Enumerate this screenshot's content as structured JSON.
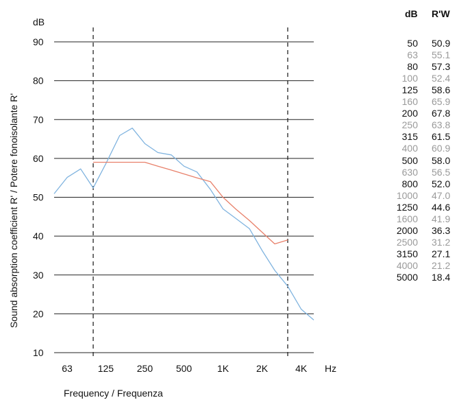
{
  "chart_data": {
    "type": "line",
    "ylabel": "Sound absorption coefficient R' / Potere fonoisolante R'",
    "xlabel": "Frequency / Frequenza",
    "y_unit": "dB",
    "x_unit": "Hz",
    "ylim": [
      10,
      90
    ],
    "y_ticks": [
      10,
      20,
      30,
      40,
      50,
      60,
      70,
      80,
      90
    ],
    "x_ticks": [
      {
        "label": "63",
        "freq": 63
      },
      {
        "label": "125",
        "freq": 125
      },
      {
        "label": "250",
        "freq": 250
      },
      {
        "label": "500",
        "freq": 500
      },
      {
        "label": "1K",
        "freq": 1000
      },
      {
        "label": "2K",
        "freq": 2000
      },
      {
        "label": "4K",
        "freq": 4000
      }
    ],
    "x_scale": "log",
    "grid": "horizontal",
    "vertical_dashed_lines": [
      100,
      3150
    ],
    "series": [
      {
        "color": "#7fb3df",
        "x": [
          50,
          63,
          80,
          100,
          125,
          160,
          200,
          250,
          315,
          400,
          500,
          630,
          800,
          1000,
          1250,
          1600,
          2000,
          2500,
          3150,
          4000,
          5000
        ],
        "values": [
          50.9,
          55.1,
          57.3,
          52.4,
          58.6,
          65.9,
          67.8,
          63.8,
          61.5,
          60.9,
          58.0,
          56.5,
          52.0,
          47.0,
          44.6,
          41.9,
          36.3,
          31.2,
          27.1,
          21.2,
          18.4
        ]
      },
      {
        "color": "#e8806a",
        "x": [
          100,
          125,
          160,
          200,
          250,
          315,
          400,
          500,
          630,
          800,
          1000,
          1250,
          1600,
          2000,
          2500,
          3150
        ],
        "values": [
          59,
          59,
          59,
          59,
          59,
          58,
          57,
          56,
          55,
          54,
          50,
          47,
          44,
          41,
          38,
          39
        ]
      }
    ]
  },
  "table": {
    "headers": [
      "dB",
      "R'W"
    ],
    "rows": [
      {
        "f": "50",
        "v": "50.9"
      },
      {
        "f": "63",
        "v": "55.1"
      },
      {
        "f": "80",
        "v": "57.3"
      },
      {
        "f": "100",
        "v": "52.4"
      },
      {
        "f": "125",
        "v": "58.6"
      },
      {
        "f": "160",
        "v": "65.9"
      },
      {
        "f": "200",
        "v": "67.8"
      },
      {
        "f": "250",
        "v": "63.8"
      },
      {
        "f": "315",
        "v": "61.5"
      },
      {
        "f": "400",
        "v": "60.9"
      },
      {
        "f": "500",
        "v": "58.0"
      },
      {
        "f": "630",
        "v": "56.5"
      },
      {
        "f": "800",
        "v": "52.0"
      },
      {
        "f": "1000",
        "v": "47.0"
      },
      {
        "f": "1250",
        "v": "44.6"
      },
      {
        "f": "1600",
        "v": "41.9"
      },
      {
        "f": "2000",
        "v": "36.3"
      },
      {
        "f": "2500",
        "v": "31.2"
      },
      {
        "f": "3150",
        "v": "27.1"
      },
      {
        "f": "4000",
        "v": "21.2"
      },
      {
        "f": "5000",
        "v": "18.4"
      }
    ]
  }
}
